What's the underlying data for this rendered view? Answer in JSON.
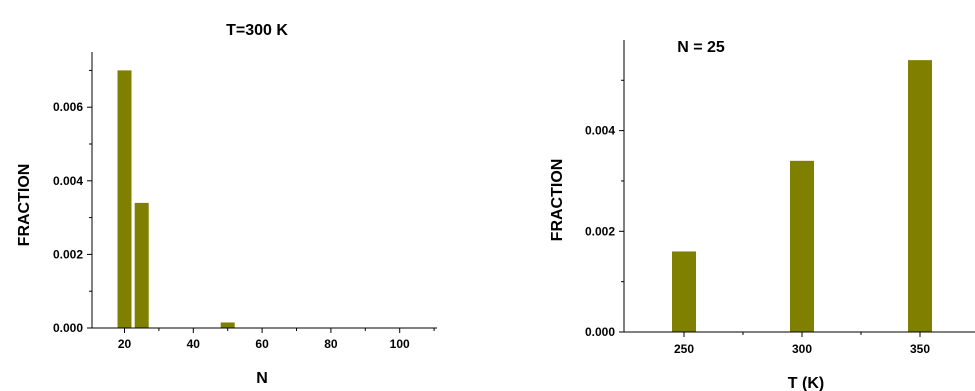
{
  "chart_data": [
    {
      "type": "bar",
      "title": "T=300 K",
      "xlabel": "N",
      "ylabel": "FRACTION",
      "x": [
        20,
        25,
        50
      ],
      "values": [
        0.007,
        0.0034,
        0.00015
      ],
      "xlim": [
        10,
        110
      ],
      "ylim": [
        0,
        0.0075
      ],
      "xticks": [
        "20",
        "40",
        "60",
        "80",
        "100"
      ],
      "yticks": [
        "0.000",
        "0.002",
        "0.004",
        "0.006"
      ],
      "bar_color": "#7f7f00",
      "grid": false
    },
    {
      "type": "bar",
      "title": "N = 25",
      "xlabel": "T (K)",
      "ylabel": "FRACTION",
      "categories": [
        "250",
        "300",
        "350"
      ],
      "values": [
        0.0016,
        0.0034,
        0.0054
      ],
      "ylim": [
        0,
        0.0058
      ],
      "yticks": [
        "0.000",
        "0.002",
        "0.004"
      ],
      "bar_color": "#7f7f00",
      "grid": false
    }
  ]
}
